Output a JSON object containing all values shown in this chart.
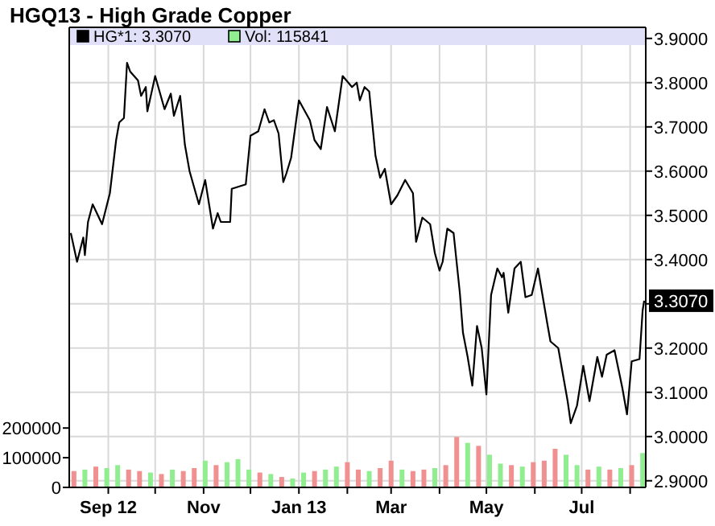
{
  "chart_data": {
    "type": "line",
    "title": "HGQ13 - High Grade Copper",
    "xlim": [
      "2012-08-07",
      "2013-08-11"
    ],
    "xticks": [
      {
        "value": "2012-09-01",
        "label": "Sep 12"
      },
      {
        "value": "2012-10-01",
        "label": null
      },
      {
        "value": "2012-11-01",
        "label": "Nov"
      },
      {
        "value": "2012-12-01",
        "label": null
      },
      {
        "value": "2013-01-01",
        "label": "Jan 13"
      },
      {
        "value": "2013-02-01",
        "label": null
      },
      {
        "value": "2013-03-01",
        "label": "Mar"
      },
      {
        "value": "2013-04-01",
        "label": null
      },
      {
        "value": "2013-05-01",
        "label": "May"
      },
      {
        "value": "2013-06-01",
        "label": null
      },
      {
        "value": "2013-07-01",
        "label": "Jul"
      },
      {
        "value": "2013-08-01",
        "label": null
      }
    ],
    "ylim": [
      0,
      1550000
    ],
    "yticks": [
      0,
      100000,
      200000
    ],
    "y2lim": [
      2.885,
      3.925
    ],
    "y2ticks": [
      {
        "value": 2.9,
        "label": "2.9000"
      },
      {
        "value": 3.0,
        "label": "3.0000"
      },
      {
        "value": 3.1,
        "label": "3.1000"
      },
      {
        "value": 3.2,
        "label": "3.2000"
      },
      {
        "value": 3.3,
        "label": null
      },
      {
        "value": 3.4,
        "label": "3.4000"
      },
      {
        "value": 3.5,
        "label": "3.5000"
      },
      {
        "value": 3.6,
        "label": "3.6000"
      },
      {
        "value": 3.7,
        "label": "3.7000"
      },
      {
        "value": 3.8,
        "label": "3.8000"
      },
      {
        "value": 3.9,
        "label": "3.9000"
      }
    ],
    "grid": true,
    "legend": "top left",
    "annotations": [
      "3.3070"
    ],
    "series": [
      {
        "name": "Vol: 115841",
        "type": "bar",
        "color": "#90ee90",
        "x": [
          "2012-08-10",
          "2012-08-17",
          "2012-08-24",
          "2012-08-31",
          "2012-09-07",
          "2012-09-14",
          "2012-09-21",
          "2012-09-28",
          "2012-10-05",
          "2012-10-12",
          "2012-10-19",
          "2012-10-26",
          "2012-11-02",
          "2012-11-09",
          "2012-11-16",
          "2012-11-23",
          "2012-11-30",
          "2012-12-07",
          "2012-12-14",
          "2012-12-21",
          "2012-12-28",
          "2013-01-04",
          "2013-01-11",
          "2013-01-18",
          "2013-01-25",
          "2013-02-01",
          "2013-02-08",
          "2013-02-15",
          "2013-02-22",
          "2013-03-01",
          "2013-03-08",
          "2013-03-15",
          "2013-03-22",
          "2013-03-29",
          "2013-04-05",
          "2013-04-12",
          "2013-04-19",
          "2013-04-26",
          "2013-05-03",
          "2013-05-10",
          "2013-05-17",
          "2013-05-24",
          "2013-05-31",
          "2013-06-07",
          "2013-06-14",
          "2013-06-21",
          "2013-06-28",
          "2013-07-05",
          "2013-07-12",
          "2013-07-19",
          "2013-07-26",
          "2013-08-02",
          "2013-08-09"
        ],
        "values": [
          55000,
          60000,
          70000,
          65000,
          75000,
          60000,
          55000,
          50000,
          45000,
          60000,
          55000,
          65000,
          90000,
          75000,
          85000,
          95000,
          60000,
          50000,
          45000,
          35000,
          30000,
          50000,
          55000,
          60000,
          70000,
          85000,
          60000,
          55000,
          65000,
          90000,
          60000,
          55000,
          60000,
          65000,
          75000,
          170000,
          150000,
          140000,
          110000,
          80000,
          75000,
          70000,
          85000,
          90000,
          130000,
          110000,
          75000,
          60000,
          70000,
          60000,
          65000,
          75000,
          115841
        ],
        "colors": [
          "#f09090",
          "#90ee90",
          "#f09090",
          "#90ee90",
          "#90ee90",
          "#f09090",
          "#f09090",
          "#90ee90",
          "#f09090",
          "#90ee90",
          "#f09090",
          "#f09090",
          "#90ee90",
          "#f09090",
          "#90ee90",
          "#90ee90",
          "#90ee90",
          "#f09090",
          "#90ee90",
          "#f09090",
          "#90ee90",
          "#90ee90",
          "#f09090",
          "#90ee90",
          "#90ee90",
          "#f09090",
          "#f09090",
          "#90ee90",
          "#f09090",
          "#f09090",
          "#90ee90",
          "#f09090",
          "#f09090",
          "#90ee90",
          "#f09090",
          "#f09090",
          "#90ee90",
          "#f09090",
          "#90ee90",
          "#90ee90",
          "#f09090",
          "#90ee90",
          "#f09090",
          "#f09090",
          "#f09090",
          "#90ee90",
          "#90ee90",
          "#f09090",
          "#90ee90",
          "#f09090",
          "#90ee90",
          "#f09090",
          "#90ee90"
        ]
      },
      {
        "name": "HG*1: 3.3070",
        "axis": "y2",
        "color": "#000000",
        "x": [
          "2012-08-08",
          "2012-08-12",
          "2012-08-16",
          "2012-08-17",
          "2012-08-19",
          "2012-08-22",
          "2012-08-28",
          "2012-09-02",
          "2012-09-06",
          "2012-09-08",
          "2012-09-11",
          "2012-09-13",
          "2012-09-15",
          "2012-09-20",
          "2012-09-22",
          "2012-09-25",
          "2012-09-26",
          "2012-10-01",
          "2012-10-07",
          "2012-10-11",
          "2012-10-13",
          "2012-10-17",
          "2012-10-20",
          "2012-10-23",
          "2012-10-29",
          "2012-11-02",
          "2012-11-07",
          "2012-11-10",
          "2012-11-12",
          "2012-11-18",
          "2012-11-19",
          "2012-11-28",
          "2012-12-01",
          "2012-12-06",
          "2012-12-10",
          "2012-12-13",
          "2012-12-16",
          "2012-12-19",
          "2012-12-22",
          "2012-12-24",
          "2012-12-27",
          "2013-01-01",
          "2013-01-08",
          "2013-01-11",
          "2013-01-15",
          "2013-01-19",
          "2013-01-24",
          "2013-01-29",
          "2013-02-04",
          "2013-02-07",
          "2013-02-09",
          "2013-02-12",
          "2013-02-15",
          "2013-02-19",
          "2013-02-22",
          "2013-02-25",
          "2013-03-01",
          "2013-03-05",
          "2013-03-10",
          "2013-03-15",
          "2013-03-17",
          "2013-03-21",
          "2013-03-26",
          "2013-03-29",
          "2013-04-01",
          "2013-04-03",
          "2013-04-06",
          "2013-04-10",
          "2013-04-14",
          "2013-04-16",
          "2013-04-19",
          "2013-04-22",
          "2013-04-25",
          "2013-04-28",
          "2013-05-01",
          "2013-05-04",
          "2013-05-08",
          "2013-05-11",
          "2013-05-12",
          "2013-05-15",
          "2013-05-19",
          "2013-05-23",
          "2013-05-26",
          "2013-05-30",
          "2013-06-03",
          "2013-06-09",
          "2013-06-11",
          "2013-06-16",
          "2013-06-22",
          "2013-06-24",
          "2013-06-28",
          "2013-07-02",
          "2013-07-06",
          "2013-07-11",
          "2013-07-14",
          "2013-07-17",
          "2013-07-22",
          "2013-07-27",
          "2013-07-30",
          "2013-08-02",
          "2013-08-07",
          "2013-08-09",
          "2013-08-10"
        ],
        "values": [
          3.46,
          3.395,
          3.45,
          3.41,
          3.485,
          3.525,
          3.48,
          3.55,
          3.67,
          3.71,
          3.72,
          3.845,
          3.825,
          3.805,
          3.77,
          3.79,
          3.735,
          3.815,
          3.74,
          3.775,
          3.725,
          3.77,
          3.66,
          3.6,
          3.525,
          3.58,
          3.47,
          3.505,
          3.485,
          3.485,
          3.56,
          3.57,
          3.68,
          3.69,
          3.74,
          3.71,
          3.715,
          3.685,
          3.575,
          3.595,
          3.63,
          3.76,
          3.715,
          3.67,
          3.65,
          3.745,
          3.69,
          3.815,
          3.79,
          3.8,
          3.76,
          3.79,
          3.78,
          3.635,
          3.585,
          3.605,
          3.525,
          3.545,
          3.58,
          3.55,
          3.44,
          3.495,
          3.48,
          3.415,
          3.375,
          3.395,
          3.47,
          3.46,
          3.325,
          3.235,
          3.18,
          3.115,
          3.25,
          3.2,
          3.095,
          3.32,
          3.38,
          3.36,
          3.37,
          3.28,
          3.38,
          3.395,
          3.315,
          3.32,
          3.38,
          3.255,
          3.215,
          3.2,
          3.08,
          3.03,
          3.07,
          3.16,
          3.08,
          3.18,
          3.135,
          3.185,
          3.195,
          3.11,
          3.05,
          3.17,
          3.175,
          3.285,
          3.307
        ]
      }
    ]
  }
}
